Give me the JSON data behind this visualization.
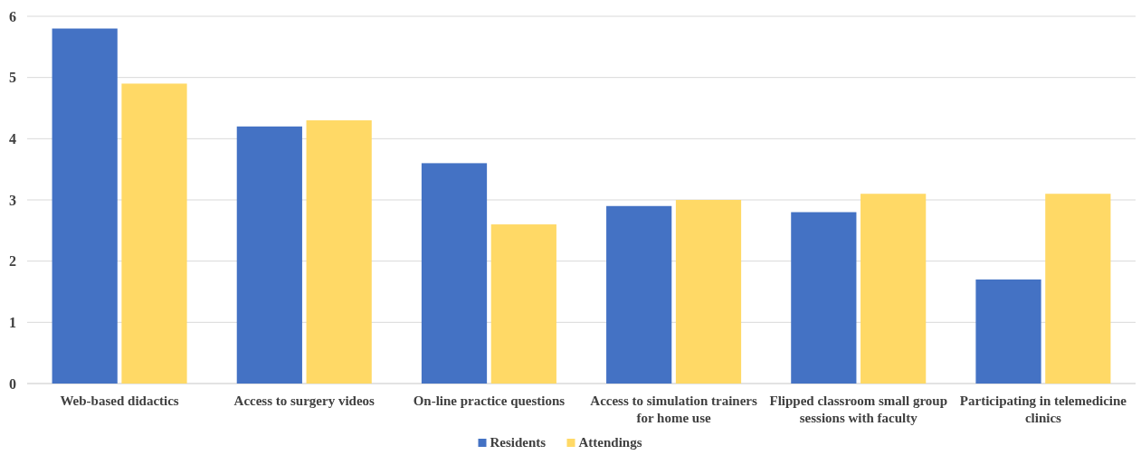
{
  "chart_data": {
    "type": "bar",
    "categories": [
      "Web-based didactics",
      "Access to surgery videos",
      "On-line practice questions",
      "Access to simulation trainers for home use",
      "Flipped classroom small group sessions with faculty",
      "Participating in telemedicine clinics"
    ],
    "series": [
      {
        "name": "Residents",
        "color": "#4472c4",
        "values": [
          5.8,
          4.2,
          3.6,
          2.9,
          2.8,
          1.7
        ]
      },
      {
        "name": "Attendings",
        "color": "#ffd966",
        "values": [
          4.9,
          4.3,
          2.6,
          3.0,
          3.1,
          3.1
        ]
      }
    ],
    "ylim": [
      0,
      6
    ],
    "yticks": [
      0,
      1,
      2,
      3,
      4,
      5,
      6
    ],
    "grid": "y",
    "legend": "bottom"
  }
}
